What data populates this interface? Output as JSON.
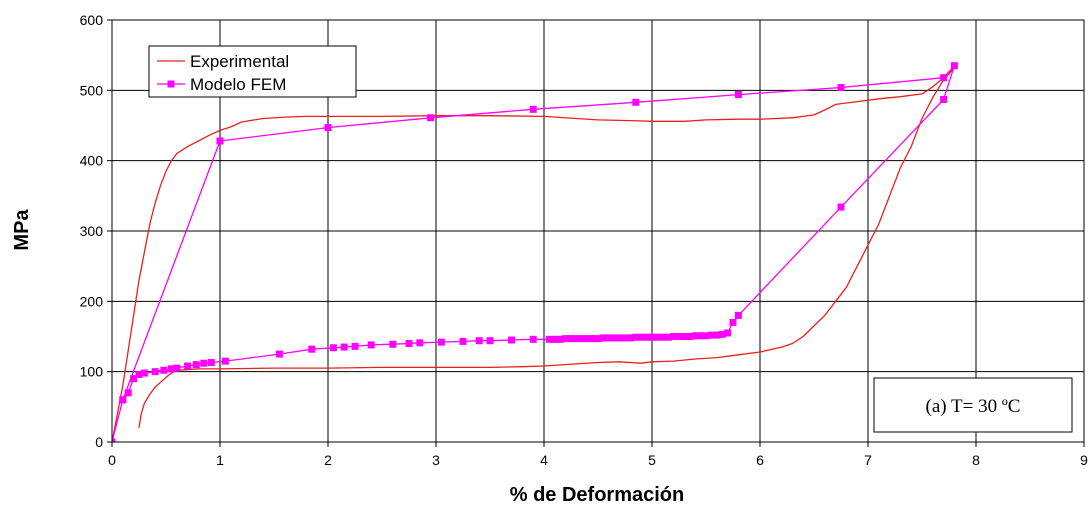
{
  "chart_data": {
    "type": "line",
    "xlabel": "% de Deformación",
    "ylabel": "MPa",
    "xlim": [
      0,
      9
    ],
    "ylim": [
      0,
      600
    ],
    "xticks": [
      "0",
      "1",
      "2",
      "3",
      "4",
      "5",
      "6",
      "7",
      "8",
      "9"
    ],
    "yticks": [
      "0",
      "100",
      "200",
      "300",
      "400",
      "500",
      "600"
    ],
    "grid": true,
    "legend": {
      "position": "top-left"
    },
    "annotation": "(a) T= 30 ºC",
    "series": [
      {
        "name": "Experimental",
        "color": "#e8211d",
        "marker": "none",
        "points": [
          [
            0,
            0
          ],
          [
            0.05,
            40
          ],
          [
            0.1,
            80
          ],
          [
            0.15,
            130
          ],
          [
            0.2,
            180
          ],
          [
            0.25,
            230
          ],
          [
            0.3,
            270
          ],
          [
            0.35,
            310
          ],
          [
            0.4,
            340
          ],
          [
            0.45,
            365
          ],
          [
            0.5,
            385
          ],
          [
            0.55,
            400
          ],
          [
            0.6,
            410
          ],
          [
            0.7,
            420
          ],
          [
            0.8,
            428
          ],
          [
            0.9,
            436
          ],
          [
            1.0,
            443
          ],
          [
            1.1,
            448
          ],
          [
            1.2,
            455
          ],
          [
            1.4,
            460
          ],
          [
            1.6,
            462
          ],
          [
            1.8,
            463
          ],
          [
            2.0,
            463
          ],
          [
            2.5,
            463
          ],
          [
            3.0,
            464
          ],
          [
            3.5,
            464
          ],
          [
            4.0,
            463
          ],
          [
            4.3,
            460
          ],
          [
            4.5,
            458
          ],
          [
            4.8,
            457
          ],
          [
            5.0,
            456
          ],
          [
            5.3,
            456
          ],
          [
            5.5,
            458
          ],
          [
            5.8,
            459
          ],
          [
            6.0,
            459
          ],
          [
            6.3,
            461
          ],
          [
            6.5,
            465
          ],
          [
            6.6,
            472
          ],
          [
            6.7,
            480
          ],
          [
            6.9,
            484
          ],
          [
            7.1,
            488
          ],
          [
            7.3,
            491
          ],
          [
            7.5,
            495
          ],
          [
            7.6,
            505
          ],
          [
            7.7,
            518
          ],
          [
            7.8,
            532
          ],
          [
            7.7,
            515
          ],
          [
            7.6,
            490
          ],
          [
            7.5,
            460
          ],
          [
            7.4,
            420
          ],
          [
            7.3,
            390
          ],
          [
            7.2,
            350
          ],
          [
            7.1,
            310
          ],
          [
            7.0,
            280
          ],
          [
            6.9,
            250
          ],
          [
            6.8,
            220
          ],
          [
            6.7,
            200
          ],
          [
            6.6,
            180
          ],
          [
            6.5,
            165
          ],
          [
            6.4,
            150
          ],
          [
            6.3,
            140
          ],
          [
            6.2,
            135
          ],
          [
            6.0,
            128
          ],
          [
            5.8,
            124
          ],
          [
            5.6,
            120
          ],
          [
            5.4,
            118
          ],
          [
            5.2,
            115
          ],
          [
            5.0,
            114
          ],
          [
            4.9,
            112
          ],
          [
            4.7,
            114
          ],
          [
            4.5,
            113
          ],
          [
            4.3,
            111
          ],
          [
            4.0,
            108
          ],
          [
            3.8,
            107
          ],
          [
            3.5,
            106
          ],
          [
            3.0,
            106
          ],
          [
            2.5,
            106
          ],
          [
            2.0,
            105
          ],
          [
            1.5,
            105
          ],
          [
            1.0,
            104
          ],
          [
            0.8,
            104
          ],
          [
            0.7,
            103
          ],
          [
            0.6,
            102
          ],
          [
            0.55,
            98
          ],
          [
            0.5,
            92
          ],
          [
            0.45,
            85
          ],
          [
            0.4,
            78
          ],
          [
            0.35,
            68
          ],
          [
            0.3,
            55
          ],
          [
            0.27,
            40
          ],
          [
            0.25,
            20
          ]
        ]
      },
      {
        "name": "Modelo FEM",
        "color": "#ff00ff",
        "marker": "square",
        "points": [
          [
            0,
            0
          ],
          [
            0.1,
            60
          ],
          [
            1.0,
            428
          ],
          [
            2.0,
            447
          ],
          [
            2.95,
            461
          ],
          [
            3.9,
            473
          ],
          [
            4.85,
            483
          ],
          [
            5.8,
            494
          ],
          [
            6.75,
            504
          ],
          [
            7.7,
            518
          ],
          [
            7.8,
            535
          ],
          [
            7.7,
            487
          ],
          [
            6.75,
            334
          ],
          [
            5.8,
            180
          ],
          [
            5.75,
            170
          ],
          [
            5.7,
            155
          ],
          [
            5.65,
            153
          ],
          [
            5.6,
            152
          ],
          [
            5.55,
            152
          ],
          [
            5.5,
            151
          ],
          [
            5.45,
            151
          ],
          [
            5.4,
            151
          ],
          [
            5.35,
            150
          ],
          [
            5.3,
            150
          ],
          [
            5.25,
            150
          ],
          [
            5.2,
            150
          ],
          [
            5.15,
            149
          ],
          [
            5.1,
            149
          ],
          [
            5.05,
            149
          ],
          [
            5.0,
            149
          ],
          [
            4.95,
            149
          ],
          [
            4.9,
            149
          ],
          [
            4.85,
            149
          ],
          [
            4.8,
            148
          ],
          [
            4.75,
            148
          ],
          [
            4.7,
            148
          ],
          [
            4.65,
            148
          ],
          [
            4.6,
            148
          ],
          [
            4.55,
            148
          ],
          [
            4.5,
            147
          ],
          [
            4.45,
            147
          ],
          [
            4.4,
            147
          ],
          [
            4.35,
            147
          ],
          [
            4.3,
            147
          ],
          [
            4.25,
            147
          ],
          [
            4.2,
            147
          ],
          [
            4.15,
            146
          ],
          [
            4.1,
            146
          ],
          [
            4.05,
            146
          ],
          [
            3.9,
            146
          ],
          [
            3.7,
            145
          ],
          [
            3.5,
            144
          ],
          [
            3.4,
            144
          ],
          [
            3.25,
            143
          ],
          [
            3.05,
            142
          ],
          [
            2.85,
            141
          ],
          [
            2.75,
            140
          ],
          [
            2.6,
            139
          ],
          [
            2.4,
            138
          ],
          [
            2.25,
            136
          ],
          [
            2.15,
            135
          ],
          [
            2.05,
            134
          ],
          [
            1.85,
            132
          ],
          [
            1.55,
            125
          ],
          [
            1.05,
            115
          ],
          [
            0.92,
            113
          ],
          [
            0.85,
            112
          ],
          [
            0.78,
            110
          ],
          [
            0.7,
            108
          ],
          [
            0.6,
            105
          ],
          [
            0.55,
            104
          ],
          [
            0.48,
            102
          ],
          [
            0.4,
            100
          ],
          [
            0.3,
            98
          ],
          [
            0.25,
            96
          ],
          [
            0.2,
            90
          ],
          [
            0.15,
            70
          ],
          [
            0.1,
            60
          ],
          [
            0,
            0
          ]
        ]
      }
    ]
  }
}
